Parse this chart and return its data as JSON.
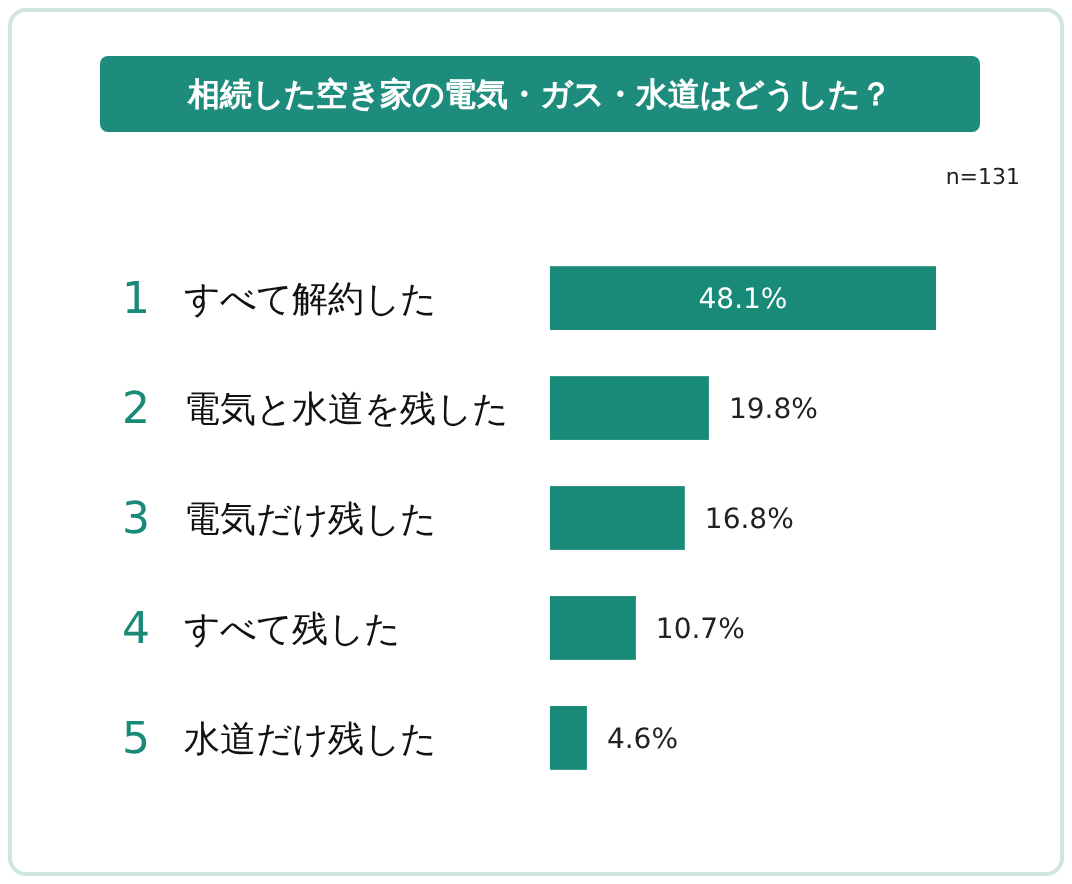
{
  "chart_data": {
    "type": "bar",
    "orientation": "horizontal",
    "title": "相続した空き家の電気・ガス・水道はどうした？",
    "categories": [
      "すべて解約した",
      "電気と水道を残した",
      "電気だけ残した",
      "すべて残した",
      "水道だけ残した"
    ],
    "values": [
      48.1,
      19.8,
      16.8,
      10.7,
      4.6
    ],
    "value_labels": [
      "48.1%",
      "19.8%",
      "16.8%",
      "10.7%",
      "4.6%"
    ],
    "color": "#1a8a78",
    "annotations": [
      "n=131",
      "1",
      "2",
      "3",
      "4",
      "5"
    ]
  }
}
